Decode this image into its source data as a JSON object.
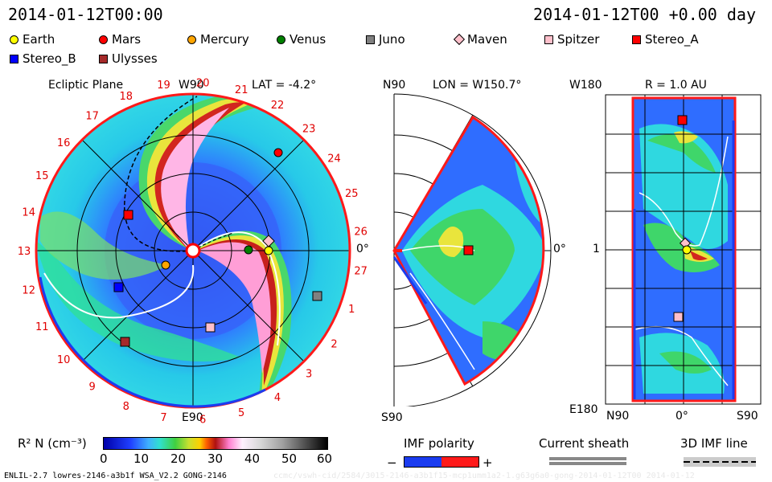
{
  "header": {
    "time_left": "2014-01-12T00:00",
    "time_right": "2014-01-12T00 +0.00 day"
  },
  "legend": [
    {
      "name": "Earth",
      "color": "#ffff00",
      "shape": "circle"
    },
    {
      "name": "Mars",
      "color": "#ff0000",
      "shape": "circle"
    },
    {
      "name": "Mercury",
      "color": "#ffa500",
      "shape": "circle"
    },
    {
      "name": "Venus",
      "color": "#008000",
      "shape": "circle"
    },
    {
      "name": "Juno",
      "color": "#808080",
      "shape": "square"
    },
    {
      "name": "Maven",
      "color": "#ffc0cb",
      "shape": "diamond"
    },
    {
      "name": "Spitzer",
      "color": "#ffc0cb",
      "shape": "square"
    },
    {
      "name": "Stereo_A",
      "color": "#ff0000",
      "shape": "square"
    },
    {
      "name": "Stereo_B",
      "color": "#0000ff",
      "shape": "square"
    },
    {
      "name": "Ulysses",
      "color": "#a52a2a",
      "shape": "square"
    }
  ],
  "ecliptic": {
    "title": "Ecliptic Plane",
    "lat": "LAT = -4.2°",
    "top_label": "W90",
    "bottom_label": "E90",
    "right_label": "0°",
    "rotation_ticks": [
      "19",
      "20",
      "21",
      "22",
      "23",
      "24",
      "25",
      "26",
      "27",
      "1",
      "2",
      "3",
      "4",
      "5",
      "6",
      "7",
      "8",
      "9",
      "10",
      "11",
      "12",
      "13",
      "14",
      "15",
      "16",
      "17",
      "18"
    ]
  },
  "meridional": {
    "top_label": "N90",
    "bottom_label": "S90",
    "lon": "LON = W150.7°",
    "right_label": "0°"
  },
  "radial": {
    "top_label": "W180",
    "bottom_label": "E180",
    "r": "R = 1.0 AU",
    "mid_label": "1",
    "x_left": "N90",
    "x_mid": "0°",
    "x_right": "S90"
  },
  "colorbar": {
    "label": "R² N (cm⁻³)",
    "ticks": [
      "0",
      "10",
      "20",
      "30",
      "40",
      "50",
      "60"
    ]
  },
  "imf": {
    "title": "IMF polarity",
    "minus": "−",
    "plus": "+"
  },
  "sheath": {
    "title": "Current sheath"
  },
  "imf3d": {
    "title": "3D IMF line"
  },
  "footer": {
    "left": "ENLIL-2.7 lowres-2146-a3b1f WSA_V2.2 GONG-2146",
    "right": "ccmc/vswh-cid/2584/3015-2146-a3b1f15-mcp1umm1a2-1.g63g6a0-gong-2014-01-12T00  2014-01-12"
  }
}
